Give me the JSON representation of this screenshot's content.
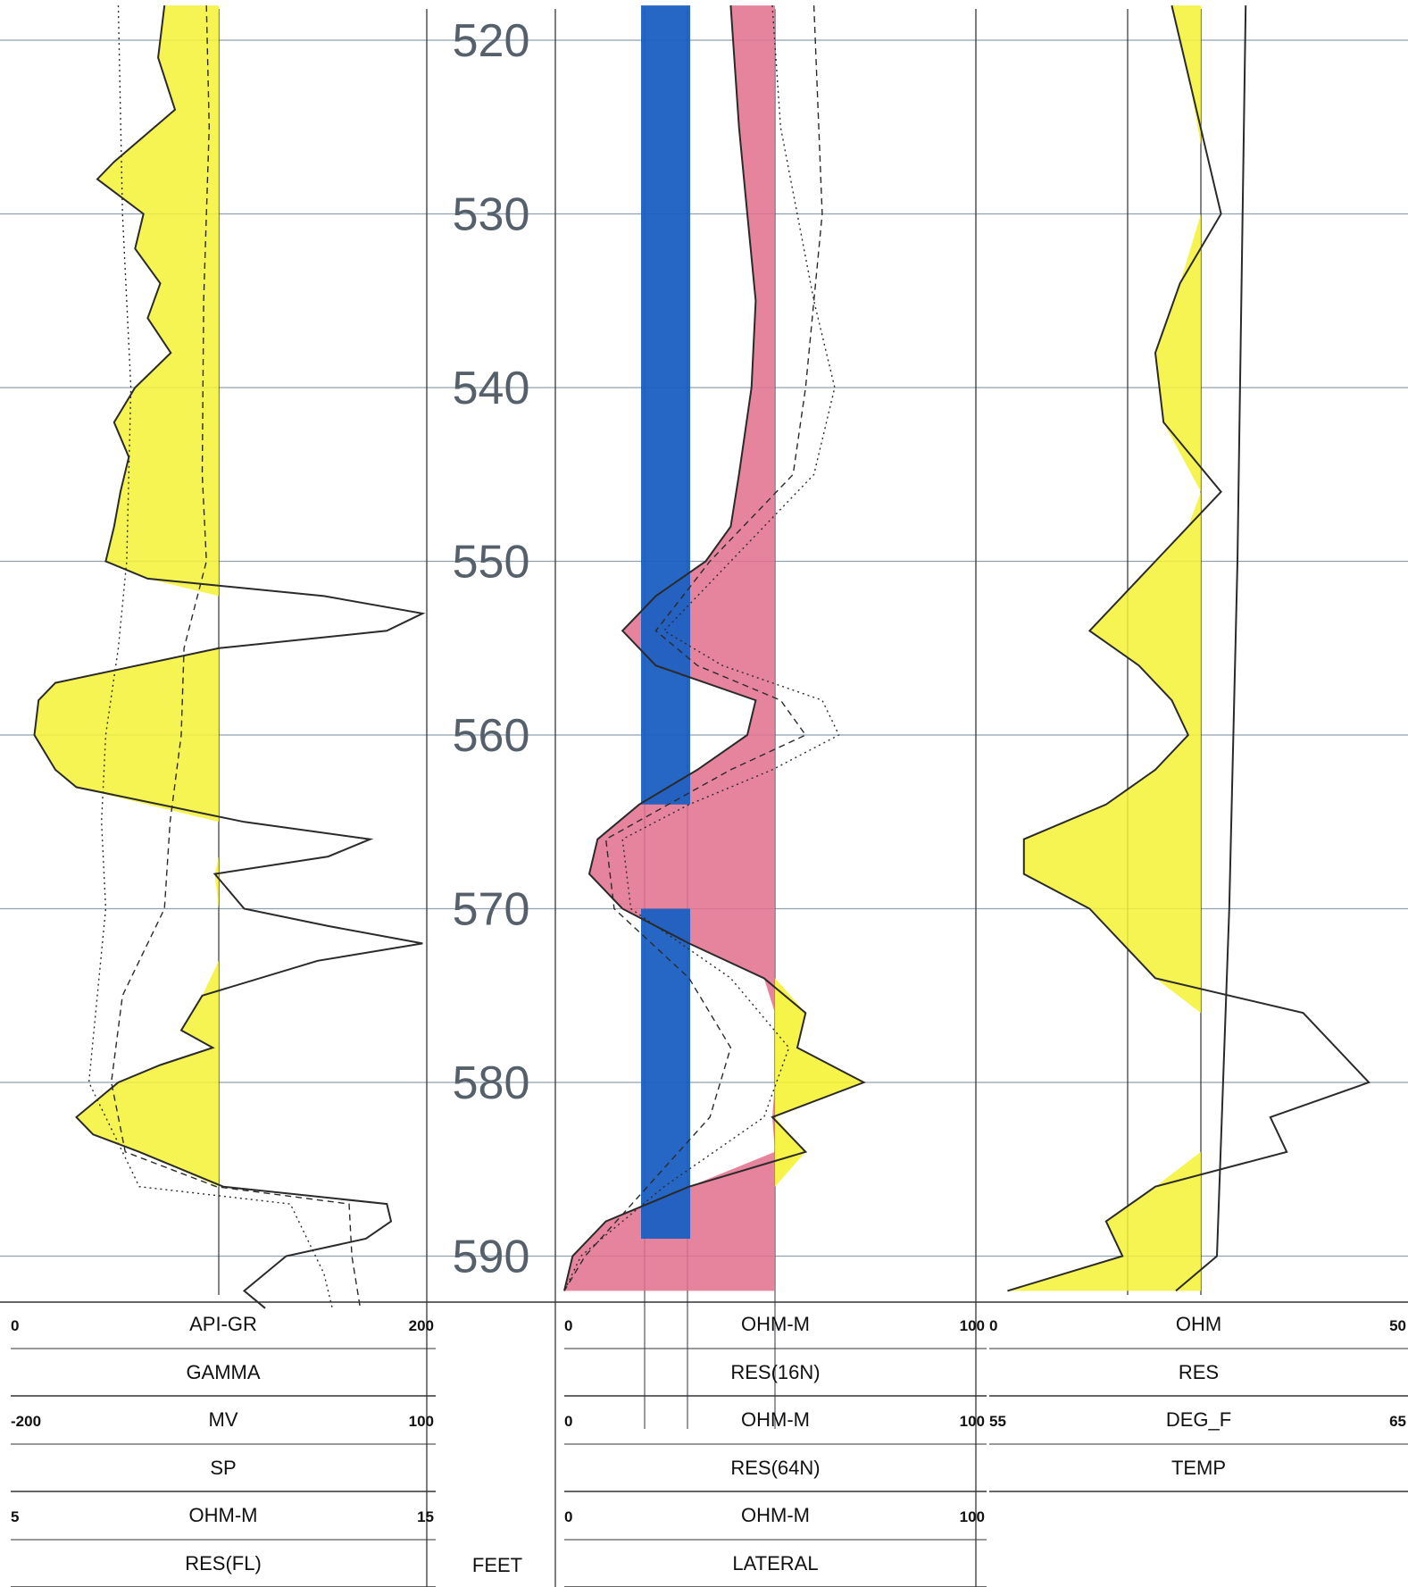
{
  "chart_data": {
    "type": "well-log",
    "depth_unit": "FEET",
    "depth_range": [
      518,
      593
    ],
    "depth_ticks": [
      520,
      530,
      540,
      550,
      560,
      570,
      580,
      590
    ],
    "colors": {
      "gamma_fill": "#f5f235",
      "res16_fill": "#e36f8c",
      "sp_fill": "#1a5fc2",
      "curve": "#2a2a2a",
      "grid": "#8fa0ae",
      "depth_text": "#55606b"
    },
    "tracks": [
      {
        "headers": [
          {
            "min": "0",
            "unit": "API-GR",
            "max": "200",
            "name": "GAMMA"
          },
          {
            "min": "-200",
            "unit": "MV",
            "max": "100",
            "name": "SP"
          },
          {
            "min": "5",
            "unit": "OHM-M",
            "max": "15",
            "name": "RES(FL)"
          }
        ],
        "curves": [
          {
            "name": "GAMMA",
            "scale": [
              0,
              200
            ],
            "style": "solid",
            "fill": "yellow",
            "points": [
              [
                518,
                72
              ],
              [
                521,
                69
              ],
              [
                524,
                77
              ],
              [
                527,
                48
              ],
              [
                528,
                40
              ],
              [
                530,
                62
              ],
              [
                532,
                58
              ],
              [
                534,
                70
              ],
              [
                536,
                64
              ],
              [
                538,
                75
              ],
              [
                540,
                58
              ],
              [
                542,
                48
              ],
              [
                544,
                55
              ],
              [
                546,
                51
              ],
              [
                548,
                48
              ],
              [
                550,
                44
              ],
              [
                551,
                64
              ],
              [
                552,
                148
              ],
              [
                553,
                195
              ],
              [
                554,
                178
              ],
              [
                555,
                98
              ],
              [
                557,
                20
              ],
              [
                558,
                12
              ],
              [
                560,
                10
              ],
              [
                562,
                20
              ],
              [
                563,
                30
              ],
              [
                565,
                110
              ],
              [
                566,
                170
              ],
              [
                567,
                150
              ],
              [
                568,
                96
              ],
              [
                570,
                110
              ],
              [
                571,
                150
              ],
              [
                572,
                195
              ],
              [
                573,
                145
              ],
              [
                575,
                90
              ],
              [
                577,
                80
              ],
              [
                578,
                95
              ],
              [
                579,
                70
              ],
              [
                580,
                50
              ],
              [
                582,
                30
              ],
              [
                583,
                38
              ],
              [
                584,
                60
              ],
              [
                586,
                100
              ],
              [
                587,
                178
              ],
              [
                588,
                180
              ],
              [
                589,
                168
              ],
              [
                590,
                130
              ],
              [
                592,
                110
              ],
              [
                593,
                120
              ]
            ]
          },
          {
            "name": "SP",
            "scale": [
              -200,
              100
            ],
            "style": "dashed",
            "points": [
              [
                518,
                -62
              ],
              [
                525,
                -60
              ],
              [
                535,
                -64
              ],
              [
                545,
                -65
              ],
              [
                550,
                -62
              ],
              [
                555,
                -78
              ],
              [
                560,
                -80
              ],
              [
                565,
                -88
              ],
              [
                570,
                -92
              ],
              [
                575,
                -122
              ],
              [
                580,
                -130
              ],
              [
                584,
                -120
              ],
              [
                586,
                -55
              ],
              [
                587,
                40
              ],
              [
                590,
                42
              ],
              [
                593,
                48
              ]
            ]
          },
          {
            "name": "RES(FL)",
            "scale": [
              5,
              15
            ],
            "style": "dotted",
            "points": [
              [
                518,
                7.5
              ],
              [
                530,
                7.6
              ],
              [
                540,
                7.8
              ],
              [
                550,
                7.7
              ],
              [
                555,
                7.5
              ],
              [
                560,
                7.2
              ],
              [
                565,
                7.1
              ],
              [
                570,
                7.2
              ],
              [
                575,
                7.0
              ],
              [
                580,
                6.8
              ],
              [
                586,
                8.0
              ],
              [
                587,
                11.6
              ],
              [
                591,
                12.4
              ],
              [
                593,
                12.6
              ]
            ]
          }
        ]
      },
      {
        "headers": [
          {
            "min": "0",
            "unit": "OHM-M",
            "max": "100",
            "name": "RES(16N)"
          },
          {
            "min": "0",
            "unit": "OHM-M",
            "max": "100",
            "name": "RES(64N)"
          },
          {
            "min": "0",
            "unit": "OHM-M",
            "max": "100",
            "name": "LATERAL"
          }
        ],
        "curves": [
          {
            "name": "RES(16N)",
            "scale": [
              0,
              100
            ],
            "style": "solid",
            "fill": "pink",
            "points": [
              [
                518,
                40
              ],
              [
                525,
                42
              ],
              [
                530,
                44
              ],
              [
                535,
                46
              ],
              [
                540,
                45
              ],
              [
                545,
                42
              ],
              [
                548,
                40
              ],
              [
                550,
                34
              ],
              [
                552,
                22
              ],
              [
                554,
                14
              ],
              [
                556,
                22
              ],
              [
                558,
                46
              ],
              [
                560,
                44
              ],
              [
                562,
                32
              ],
              [
                564,
                18
              ],
              [
                566,
                8
              ],
              [
                568,
                6
              ],
              [
                570,
                14
              ],
              [
                572,
                30
              ],
              [
                574,
                48
              ],
              [
                576,
                58
              ],
              [
                578,
                56
              ],
              [
                580,
                72
              ],
              [
                582,
                50
              ],
              [
                584,
                58
              ],
              [
                586,
                30
              ],
              [
                588,
                10
              ],
              [
                590,
                2
              ],
              [
                592,
                0
              ]
            ]
          },
          {
            "name": "RES(64N)",
            "scale": [
              0,
              100
            ],
            "style": "dashed",
            "points": [
              [
                518,
                60
              ],
              [
                530,
                62
              ],
              [
                540,
                58
              ],
              [
                545,
                55
              ],
              [
                550,
                35
              ],
              [
                554,
                22
              ],
              [
                556,
                32
              ],
              [
                558,
                52
              ],
              [
                560,
                58
              ],
              [
                562,
                40
              ],
              [
                564,
                25
              ],
              [
                566,
                10
              ],
              [
                570,
                12
              ],
              [
                574,
                30
              ],
              [
                578,
                40
              ],
              [
                582,
                35
              ],
              [
                586,
                20
              ],
              [
                590,
                5
              ],
              [
                592,
                0
              ]
            ]
          },
          {
            "name": "LATERAL",
            "scale": [
              0,
              100
            ],
            "style": "dotted",
            "points": [
              [
                518,
                50
              ],
              [
                525,
                52
              ],
              [
                535,
                60
              ],
              [
                540,
                65
              ],
              [
                545,
                60
              ],
              [
                550,
                40
              ],
              [
                554,
                24
              ],
              [
                556,
                38
              ],
              [
                558,
                62
              ],
              [
                560,
                66
              ],
              [
                562,
                50
              ],
              [
                564,
                30
              ],
              [
                566,
                14
              ],
              [
                570,
                16
              ],
              [
                574,
                40
              ],
              [
                578,
                54
              ],
              [
                582,
                48
              ],
              [
                586,
                24
              ],
              [
                590,
                4
              ],
              [
                592,
                0
              ]
            ]
          }
        ]
      },
      {
        "headers": [
          {
            "min": "0",
            "unit": "OHM",
            "max": "50",
            "name": "RES"
          },
          {
            "min": "55",
            "unit": "DEG_F",
            "max": "65",
            "name": "TEMP"
          }
        ],
        "curves": [
          {
            "name": "RES",
            "scale": [
              0,
              50
            ],
            "style": "solid",
            "fill": "yellow",
            "points": [
              [
                518,
                22
              ],
              [
                522,
                24
              ],
              [
                526,
                26
              ],
              [
                530,
                28
              ],
              [
                534,
                23
              ],
              [
                538,
                20
              ],
              [
                542,
                21
              ],
              [
                546,
                28
              ],
              [
                548,
                24
              ],
              [
                550,
                20
              ],
              [
                552,
                16
              ],
              [
                554,
                12
              ],
              [
                556,
                18
              ],
              [
                558,
                22
              ],
              [
                560,
                24
              ],
              [
                562,
                20
              ],
              [
                564,
                14
              ],
              [
                566,
                4
              ],
              [
                568,
                4
              ],
              [
                570,
                12
              ],
              [
                572,
                16
              ],
              [
                574,
                20
              ],
              [
                576,
                38
              ],
              [
                578,
                42
              ],
              [
                580,
                46
              ],
              [
                582,
                34
              ],
              [
                584,
                36
              ],
              [
                586,
                20
              ],
              [
                588,
                14
              ],
              [
                590,
                16
              ],
              [
                592,
                2
              ]
            ]
          },
          {
            "name": "TEMP",
            "scale": [
              55,
              65
            ],
            "style": "solid",
            "points": [
              [
                518,
                61.2
              ],
              [
                550,
                61.0
              ],
              [
                570,
                60.8
              ],
              [
                590,
                60.5
              ],
              [
                592,
                59.5
              ]
            ]
          }
        ]
      }
    ]
  }
}
